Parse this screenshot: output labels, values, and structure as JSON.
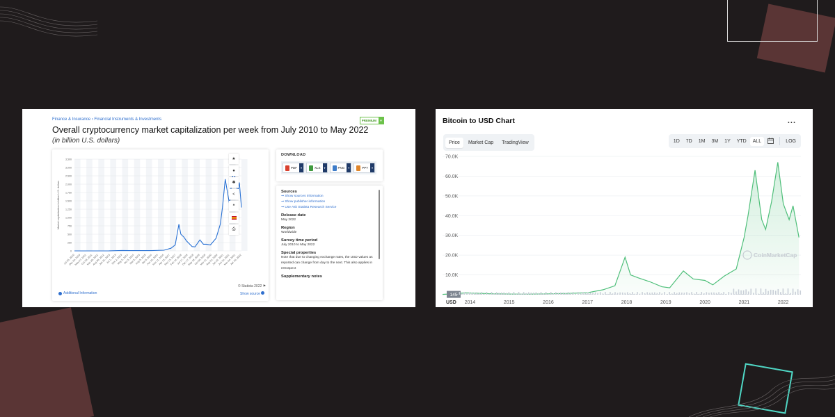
{
  "left": {
    "breadcrumb": [
      "Finance & Insurance",
      "Financial Instruments & Investments"
    ],
    "breadcrumb_sep": "›",
    "premium_label": "PREMIUM",
    "title": "Overall cryptocurrency market capitalization per week from July 2010 to May 2022",
    "subtitle": "(in billion U.S. dollars)",
    "download": {
      "title": "DOWNLOAD",
      "buttons": [
        {
          "label": "PDF",
          "color": "#d9412f"
        },
        {
          "label": "XLS",
          "color": "#3f9a3f"
        },
        {
          "label": "PNG",
          "color": "#3d7cc9"
        },
        {
          "label": "PPT",
          "color": "#e0862b"
        }
      ]
    },
    "info": {
      "sources_heading": "Sources",
      "source_links": [
        "Show sources information",
        "Show publisher information",
        "Use Ask Statista Research Service"
      ],
      "release_heading": "Release date",
      "release_value": "May 2022",
      "region_heading": "Region",
      "region_value": "Worldwide",
      "survey_heading": "Survey time period",
      "survey_value": "July 2010 to May 2022",
      "special_heading": "Special properties",
      "special_value": "Note that due to changing exchange rates, the USD values as reported can change from day to the next. This also applies in retrospect",
      "supp_heading": "Supplementary notes"
    },
    "footer_left": "Additional Information",
    "footer_credit": "© Statista 2022",
    "footer_source": "Show source"
  },
  "right": {
    "title": "Bitcoin to USD Chart",
    "more": "...",
    "tabs": [
      "Price",
      "Market Cap",
      "TradingView"
    ],
    "active_tab": "Price",
    "ranges": [
      "1D",
      "7D",
      "1M",
      "3M",
      "1Y",
      "YTD",
      "ALL"
    ],
    "active_range": "ALL",
    "log_label": "LOG",
    "watermark": "CoinMarketCap",
    "current_marker": "145",
    "axis_currency": "USD"
  },
  "chart_data": [
    {
      "type": "line",
      "title": "Overall cryptocurrency market capitalization per week from July 2010 to May 2022",
      "ylabel": "Market capitalization in billion U.S. dollars",
      "xlabel": "",
      "ylim": [
        0,
        3500
      ],
      "yticks": [
        "3,500",
        "3,000",
        "2,500",
        "2,000",
        "1,750",
        "1,500",
        "1,250",
        "1,000",
        "750",
        "500",
        "250",
        "0"
      ],
      "ytick_values": [
        3500,
        3000,
        2500,
        2000,
        1750,
        1500,
        1250,
        1000,
        750,
        500,
        250,
        0
      ],
      "x_labels": [
        "Jul 25, 2010",
        "Dec 26, 2010",
        "May 27, 2011",
        "Oct 28, 2011",
        "Mar 29, 2012",
        "Aug 30, 2012",
        "Jan 31, 2013",
        "Jul 1, 2013",
        "Dec 2, 2013",
        "May 5, 2014",
        "Oct 5, 2014",
        "Mar 8, 2015",
        "Aug 9, 2015",
        "Jan 9, 2016",
        "Jun 10, 2016",
        "Nov 11, 2016",
        "Apr 13, 2017",
        "Sep 13, 2017",
        "Feb 14, 2018",
        "Jul 17, 2018",
        "Dec 17, 2018",
        "May 19, 2019",
        "Oct 20, 2019",
        "Mar 21, 2020",
        "Aug 22, 2020",
        "Jan 22, 2021",
        "Jun 24, 2021",
        "Nov 24, 2021",
        "Apr 26, 2022"
      ],
      "series": [
        {
          "name": "Market capitalization",
          "color": "#2a72d4",
          "x": [
            2010.55,
            2012.0,
            2013.0,
            2013.9,
            2014.5,
            2016.0,
            2016.9,
            2017.4,
            2017.7,
            2017.96,
            2018.1,
            2018.3,
            2018.5,
            2018.9,
            2019.1,
            2019.45,
            2019.7,
            2019.9,
            2020.2,
            2020.6,
            2020.9,
            2021.05,
            2021.25,
            2021.55,
            2021.7,
            2021.86,
            2022.0,
            2022.15,
            2022.25,
            2022.4
          ],
          "values": [
            0,
            0,
            2,
            12,
            8,
            8,
            20,
            80,
            180,
            800,
            500,
            420,
            300,
            130,
            120,
            330,
            200,
            200,
            180,
            380,
            800,
            1300,
            2300,
            1400,
            2100,
            2900,
            2000,
            1800,
            2100,
            1300
          ]
        }
      ]
    },
    {
      "type": "area",
      "title": "Bitcoin to USD Chart",
      "ylabel": "USD",
      "ylim": [
        0,
        70000
      ],
      "yticks": [
        "70.0K",
        "60.0K",
        "50.0K",
        "40.0K",
        "30.0K",
        "20.0K",
        "10.0K"
      ],
      "ytick_values": [
        70000,
        60000,
        50000,
        40000,
        30000,
        20000,
        10000
      ],
      "x_labels": [
        "2014",
        "2015",
        "2016",
        "2017",
        "2018",
        "2019",
        "2020",
        "2021",
        "2022"
      ],
      "x_label_values": [
        2014,
        2015,
        2016,
        2017,
        2018,
        2019,
        2020,
        2021,
        2022
      ],
      "series": [
        {
          "name": "Price",
          "color": "#4fbf7a",
          "x": [
            2013.3,
            2013.9,
            2014.5,
            2015.0,
            2015.5,
            2016.0,
            2016.5,
            2017.0,
            2017.4,
            2017.7,
            2017.96,
            2018.1,
            2018.3,
            2018.6,
            2018.9,
            2019.1,
            2019.45,
            2019.7,
            2020.0,
            2020.2,
            2020.5,
            2020.8,
            2021.0,
            2021.1,
            2021.28,
            2021.45,
            2021.55,
            2021.7,
            2021.86,
            2022.0,
            2022.15,
            2022.25,
            2022.4
          ],
          "values": [
            145,
            900,
            500,
            300,
            250,
            430,
            650,
            1000,
            2500,
            4500,
            19000,
            10000,
            8500,
            6500,
            4000,
            3500,
            12000,
            8000,
            7200,
            5000,
            9500,
            13000,
            29000,
            40000,
            63000,
            38000,
            33000,
            47000,
            67000,
            46000,
            38000,
            45000,
            29000
          ]
        }
      ]
    }
  ]
}
